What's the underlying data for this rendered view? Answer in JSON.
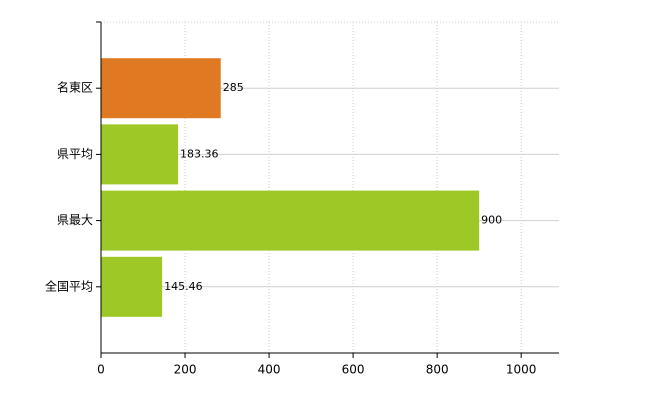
{
  "chart_data": {
    "type": "barh",
    "categories": [
      "名東区",
      "県平均",
      "県最大",
      "全国平均"
    ],
    "values": [
      285,
      183.36,
      900,
      145.46
    ],
    "colors": [
      "#e07a22",
      "#9ec825",
      "#9ec825",
      "#9ec825"
    ],
    "xlim": [
      0,
      1090
    ],
    "xticks": [
      0,
      200,
      400,
      600,
      800,
      1000
    ],
    "grid": true
  }
}
